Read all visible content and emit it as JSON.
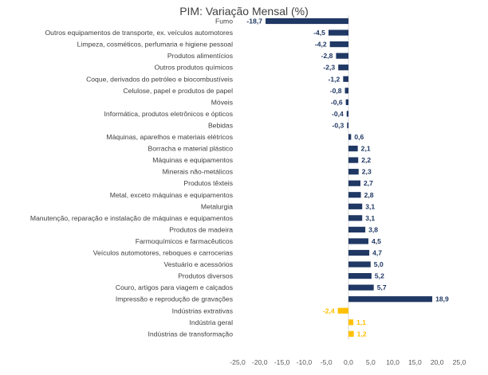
{
  "chart_data": {
    "type": "bar",
    "orientation": "horizontal",
    "title": "PIM: Variação Mensal (%)",
    "xlabel": "",
    "ylabel": "",
    "xlim": [
      -25,
      25
    ],
    "x_ticks": [
      "-25,0",
      "-20,0",
      "-15,0",
      "-10,0",
      "-5,0",
      "0,0",
      "5,0",
      "10,0",
      "15,0",
      "20,0",
      "25,0"
    ],
    "grid": false,
    "legend": "none",
    "colors": {
      "primary": "#203864",
      "highlight": "#FFC000"
    },
    "categories": [
      "Fumo",
      "Outros equipamentos de transporte, ex. veículos automotores",
      "Limpeza, cosméticos, perfumaria e higiene pessoal",
      "Produtos alimentícios",
      "Outros produtos químicos",
      "Coque, derivados do petróleo e biocombustíveis",
      "Celulose, papel e produtos de papel",
      "Móveis",
      "Informática, produtos eletrônicos e ópticos",
      "Bebidas",
      "Máquinas, aparelhos e materiais elétricos",
      "Borracha e material plástico",
      "Máquinas e equipamentos",
      "Minerais não-metálicos",
      "Produtos têxteis",
      "Metal, exceto máquinas e equipamentos",
      "Metalurgia",
      "Manutenção, reparação e instalação de máquinas e equipamentos",
      "Produtos de madeira",
      "Farmoquímicos e farmacêuticos",
      "Veículos automotores, reboques e carrocerias",
      "Vestuário e acessórios",
      "Produtos diversos",
      "Couro, artigos para viagem e calçados",
      "Impressão e reprodução de gravações",
      "Indústrias extrativas",
      "Indústria geral",
      "Indústrias de transformação"
    ],
    "values": [
      -18.7,
      -4.5,
      -4.2,
      -2.8,
      -2.3,
      -1.2,
      -0.8,
      -0.6,
      -0.4,
      -0.3,
      0.6,
      2.1,
      2.2,
      2.3,
      2.7,
      2.8,
      3.1,
      3.1,
      3.8,
      4.5,
      4.7,
      5.0,
      5.2,
      5.7,
      18.9,
      -2.4,
      1.1,
      1.2
    ],
    "value_labels": [
      "-18,7",
      "-4,5",
      "-4,2",
      "-2,8",
      "-2,3",
      "-1,2",
      "-0,8",
      "-0,6",
      "-0,4",
      "-0,3",
      "0,6",
      "2,1",
      "2,2",
      "2,3",
      "2,7",
      "2,8",
      "3,1",
      "3,1",
      "3,8",
      "4,5",
      "4,7",
      "5,0",
      "5,2",
      "5,7",
      "18,9",
      "-2,4",
      "1,1",
      "1,2"
    ],
    "highlighted_categories": [
      "Indústrias extrativas",
      "Indústria geral",
      "Indústrias de transformação"
    ]
  }
}
